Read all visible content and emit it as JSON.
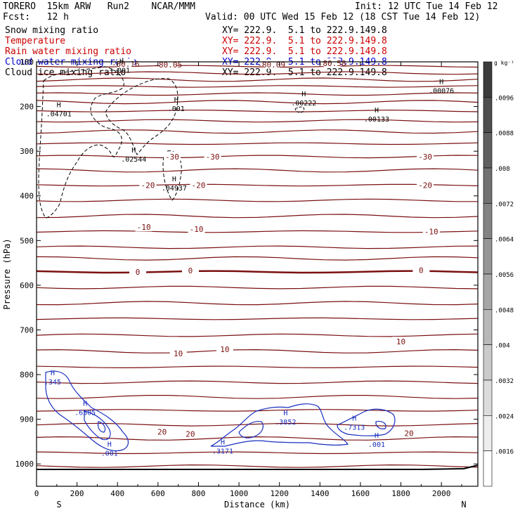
{
  "header": {
    "model": "TORERO  15km ARW   Run2    NCAR/MMM",
    "init": "Init: 12 UTC Tue 14 Feb 12",
    "fcst": "Fcst:   12 h",
    "valid": "Valid: 00 UTC Wed 15 Feb 12 (18 CST Tue 14 Feb 12)"
  },
  "fields": [
    {
      "name": "Snow mixing ratio",
      "xy": "XY= 222.9.  5.1 to 222.9.149.8",
      "color": "#000000"
    },
    {
      "name": "Temperature",
      "xy": "XY= 222.9.  5.1 to 222.9.149.8",
      "color": "#cc0000"
    },
    {
      "name": "Rain water mixing ratio",
      "xy": "XY= 222.9.  5.1 to 222.9.149.8",
      "color": "#cc0000"
    },
    {
      "name": "Cloud water mixing ratio",
      "xy": "XY= 222.9.  5.1 to 222.9.149.8",
      "color": "#0000cc"
    },
    {
      "name": "Cloud ice mixing ratio",
      "xy": "XY= 222.9.  5.1 to 222.9.149.8",
      "color": "#000000"
    }
  ],
  "colors": {
    "temperature": "#7a1010",
    "temperature_zero": "#7a1010",
    "cloud_water": "#1a2fbf",
    "snow": "#000000",
    "frame": "#000000"
  },
  "chart_data": {
    "type": "contour",
    "xlabel": "Distance (km)",
    "ylabel": "Pressure (hPa)",
    "xlim": [
      0,
      2180
    ],
    "ylim": [
      1050,
      100
    ],
    "x_ticks": [
      "0",
      "200",
      "400",
      "600",
      "800",
      "1000",
      "1200",
      "1400",
      "1600",
      "1800",
      "2000"
    ],
    "y_ticks": [
      "100",
      "200",
      "300",
      "400",
      "500",
      "600",
      "700",
      "800",
      "900",
      "1000"
    ],
    "left_end": "S",
    "right_end": "N",
    "colorbar": {
      "unit": "g kg⁻¹",
      "ticks": [
        ".0096",
        ".0088",
        ".008",
        ".0072",
        ".0064",
        ".0056",
        ".0048",
        ".004",
        ".0032",
        ".0024",
        ".0016"
      ]
    },
    "temperature_labels": [
      {
        "text": "-30",
        "x": 670,
        "p": 312
      },
      {
        "text": "-30",
        "x": 870,
        "p": 312
      },
      {
        "text": "-30",
        "x": 1920,
        "p": 312
      },
      {
        "text": "-20",
        "x": 550,
        "p": 376
      },
      {
        "text": "-20",
        "x": 800,
        "p": 376
      },
      {
        "text": "-20",
        "x": 1920,
        "p": 376
      },
      {
        "text": "-10",
        "x": 530,
        "p": 470
      },
      {
        "text": "-10",
        "x": 790,
        "p": 474
      },
      {
        "text": "-10",
        "x": 1950,
        "p": 480
      },
      {
        "text": "0",
        "x": 500,
        "p": 570
      },
      {
        "text": "0",
        "x": 760,
        "p": 567
      },
      {
        "text": "0",
        "x": 1900,
        "p": 566
      },
      {
        "text": "10",
        "x": 700,
        "p": 753
      },
      {
        "text": "10",
        "x": 930,
        "p": 743
      },
      {
        "text": "10",
        "x": 1800,
        "p": 726
      },
      {
        "text": "20",
        "x": 620,
        "p": 928
      },
      {
        "text": "20",
        "x": 760,
        "p": 933
      },
      {
        "text": "20",
        "x": 1840,
        "p": 931
      },
      {
        "text": "-80.16",
        "x": 440,
        "p": 105
      },
      {
        "text": "-80.05",
        "x": 650,
        "p": 106
      },
      {
        "text": "-80.09",
        "x": 1160,
        "p": 106
      },
      {
        "text": "-80.58",
        "x": 1460,
        "p": 103
      }
    ],
    "snow_maxima": [
      {
        "value": ".04701",
        "x": 110,
        "p": 217
      },
      {
        "value": ".02544",
        "x": 480,
        "p": 319
      },
      {
        "value": ".04937",
        "x": 680,
        "p": 383
      },
      {
        "value": ".00222",
        "x": 1320,
        "p": 193
      },
      {
        "value": ".00133",
        "x": 1680,
        "p": 229
      },
      {
        "value": ".00076",
        "x": 2000,
        "p": 165
      },
      {
        "value": ".001",
        "x": 420,
        "p": 120
      },
      {
        "value": ".001",
        "x": 690,
        "p": 205
      }
    ],
    "cloud_water_maxima": [
      {
        "value": ".345",
        "x": 80,
        "p": 817
      },
      {
        "value": ".6505",
        "x": 240,
        "p": 886
      },
      {
        "value": ".001",
        "x": 360,
        "p": 977
      },
      {
        "value": ".3852",
        "x": 1230,
        "p": 907
      },
      {
        "value": ".3171",
        "x": 920,
        "p": 972
      },
      {
        "value": ".7313",
        "x": 1570,
        "p": 919
      },
      {
        "value": ".001",
        "x": 1680,
        "p": 957
      }
    ],
    "temperature_isotherm_pressures": [
      110,
      125,
      140,
      155,
      172,
      190,
      210,
      232,
      256,
      283,
      312,
      343,
      376,
      410,
      445,
      480,
      515,
      540,
      570,
      605,
      640,
      675,
      712,
      748,
      783,
      817,
      850,
      880,
      912,
      943,
      975,
      1005
    ]
  }
}
